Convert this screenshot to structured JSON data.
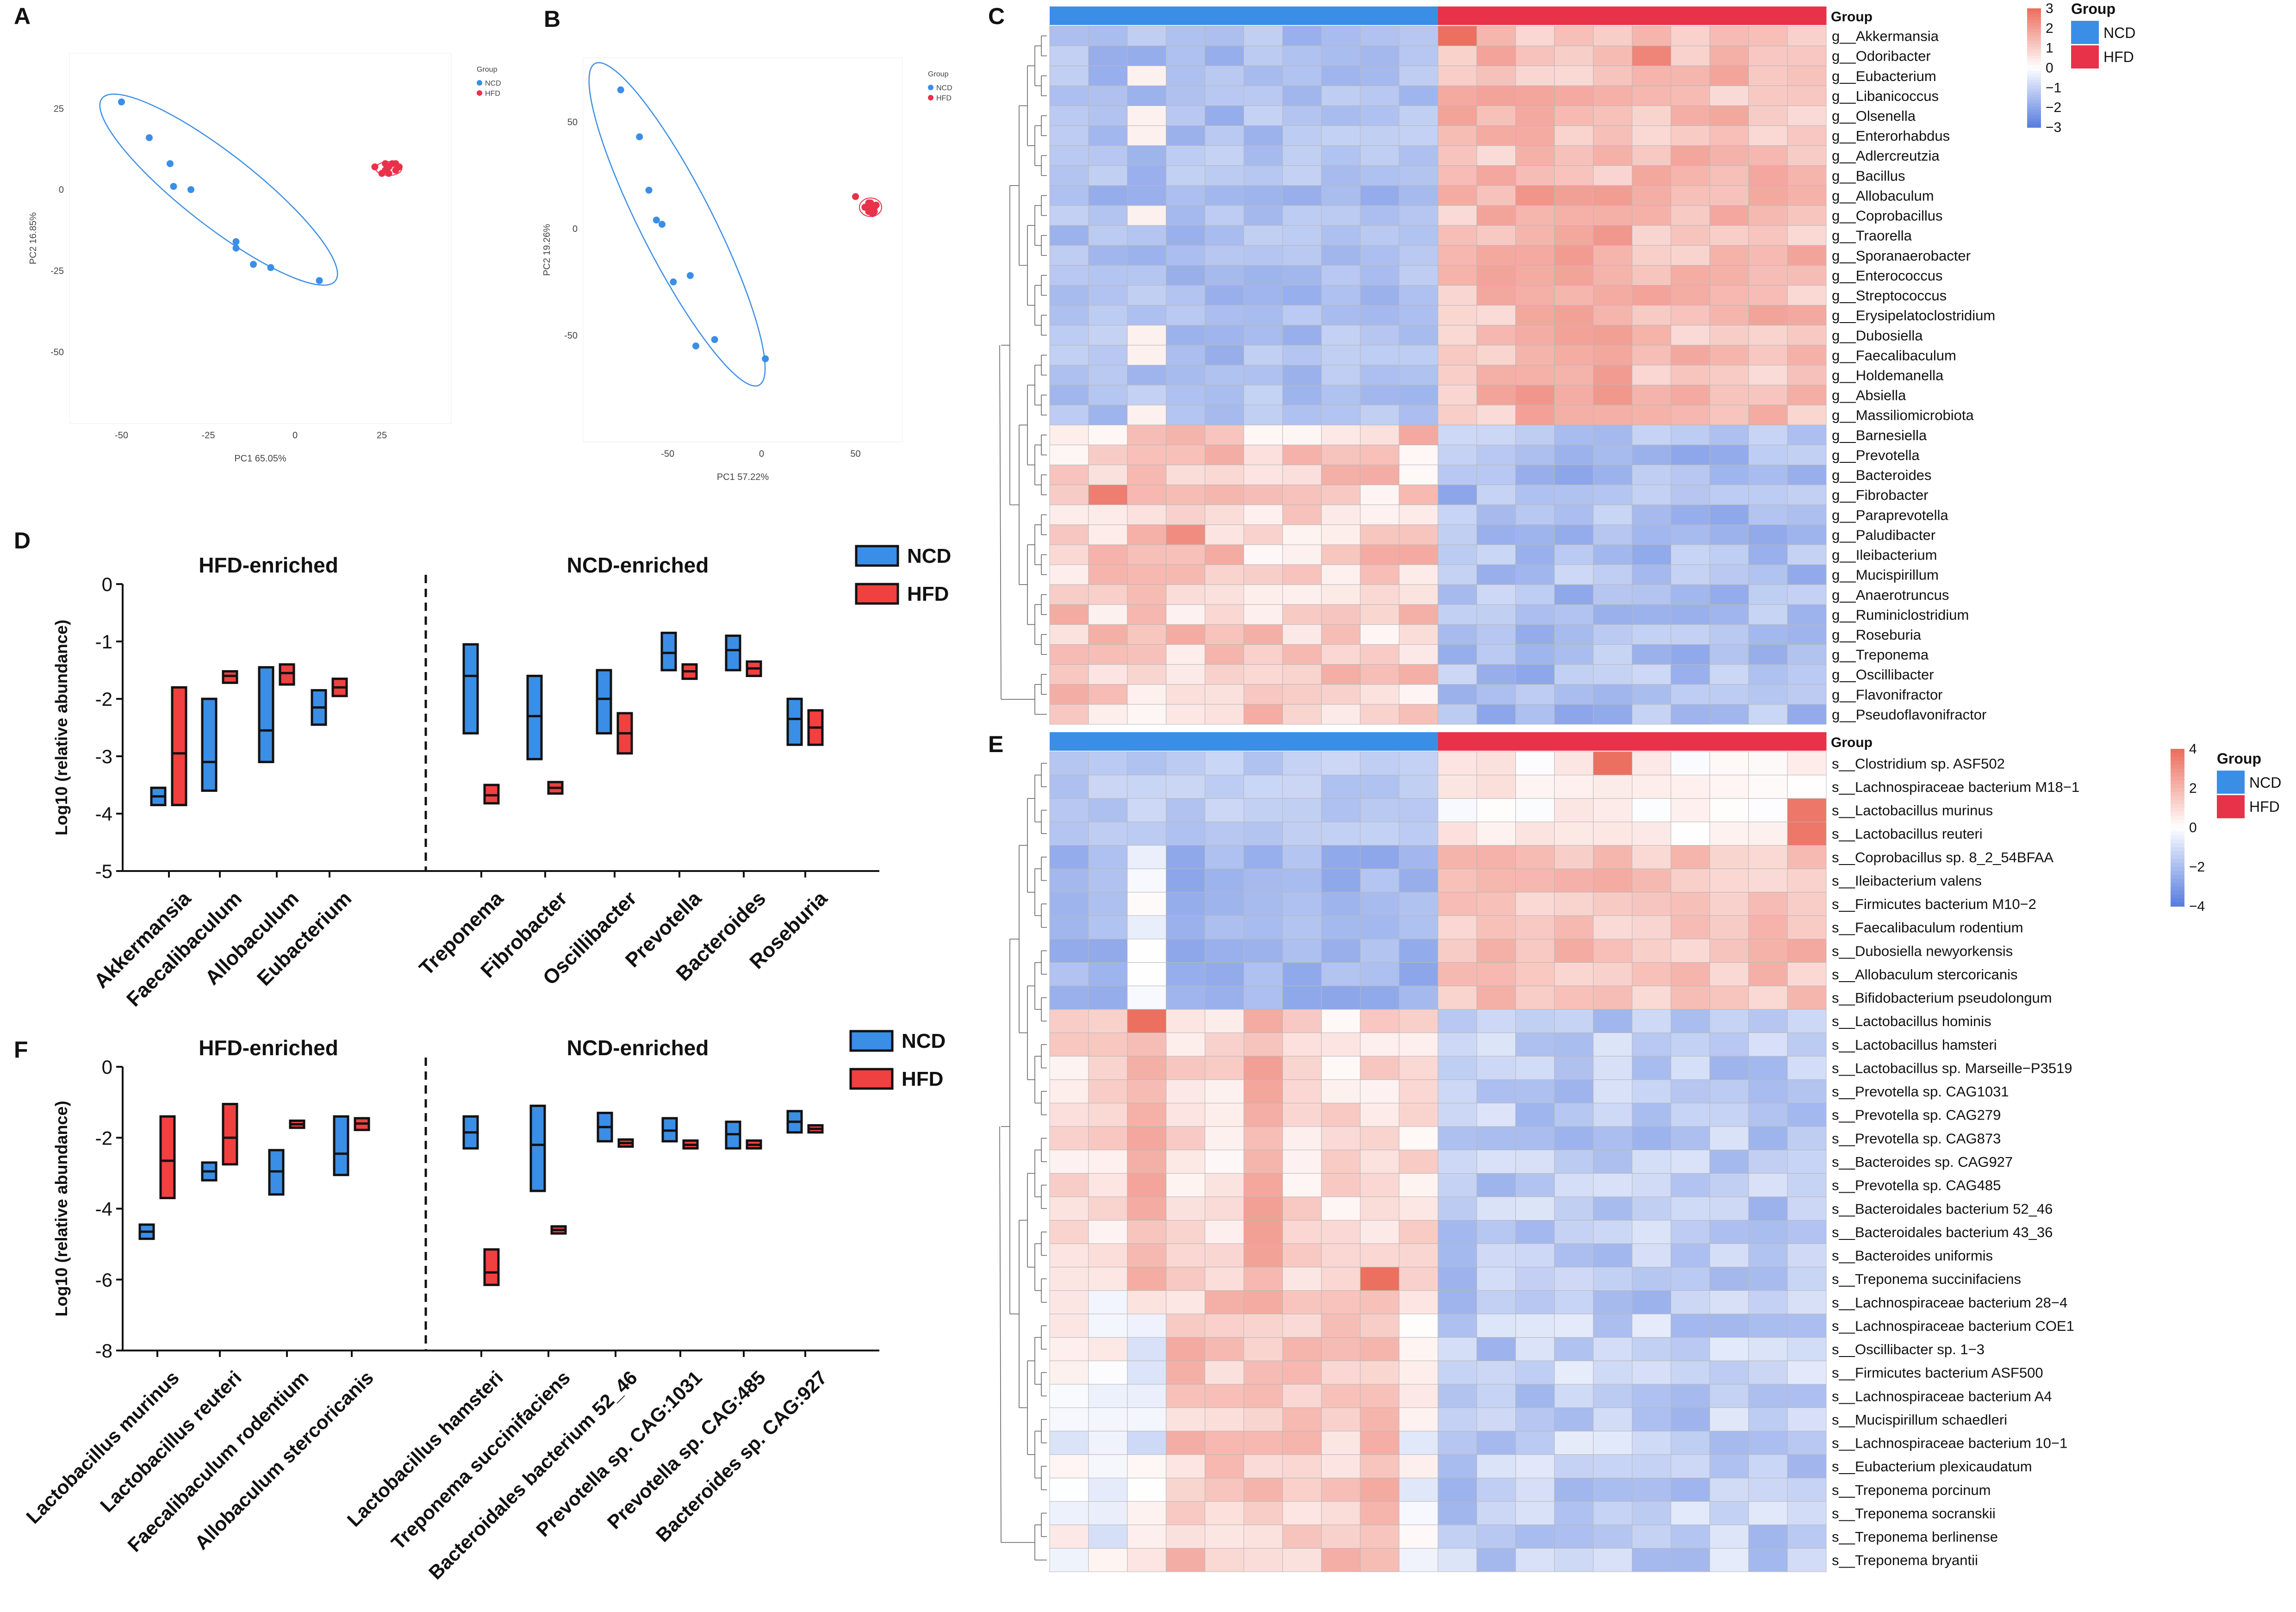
{
  "figure": {
    "panel_letters": [
      "A",
      "B",
      "C",
      "D",
      "E",
      "F"
    ]
  },
  "colors": {
    "ncd": "#3a8ee6",
    "hfd": "#e8324a",
    "ncd_bar": "#3a8ee6",
    "hfd_bar": "#f04040",
    "heat_low": "#5a7fe0",
    "heat_mid": "#ffffff",
    "heat_high": "#ec7060"
  },
  "legend": {
    "title": "Group",
    "ncd": "NCD",
    "hfd": "HFD"
  },
  "chart_data": [
    {
      "id": "A",
      "type": "scatter",
      "xlabel": "PC1 65.05%",
      "ylabel": "PC2 16.85%",
      "xlim": [
        -65,
        45
      ],
      "ylim": [
        -72,
        42
      ],
      "xticks": [
        -50,
        -25,
        0,
        25
      ],
      "yticks": [
        25,
        0,
        -25,
        -50
      ],
      "legend_title": "Group",
      "legend_entries": [
        "NCD",
        "HFD"
      ],
      "series": [
        {
          "name": "NCD",
          "points": [
            [
              -50,
              27
            ],
            [
              -42,
              16
            ],
            [
              -36,
              8
            ],
            [
              -35,
              1
            ],
            [
              -30,
              0
            ],
            [
              -17,
              -16
            ],
            [
              -17,
              -18
            ],
            [
              -12,
              -23
            ],
            [
              -7,
              -24
            ],
            [
              7,
              -28
            ]
          ]
        },
        {
          "name": "HFD",
          "points": [
            [
              23,
              7
            ],
            [
              25,
              5
            ],
            [
              26,
              6
            ],
            [
              27,
              7
            ],
            [
              28,
              8
            ],
            [
              29,
              6
            ],
            [
              30,
              7
            ],
            [
              27,
              5
            ],
            [
              29,
              8
            ],
            [
              26,
              8
            ]
          ]
        }
      ]
    },
    {
      "id": "B",
      "type": "scatter",
      "xlabel": "PC1 57.22%",
      "ylabel": "PC2 19.26%",
      "xlim": [
        -95,
        75
      ],
      "ylim": [
        -100,
        80
      ],
      "xticks": [
        -50,
        0,
        50
      ],
      "yticks": [
        50,
        0,
        -50
      ],
      "legend_title": "Group",
      "legend_entries": [
        "NCD",
        "HFD"
      ],
      "series": [
        {
          "name": "NCD",
          "points": [
            [
              -75,
              65
            ],
            [
              -65,
              43
            ],
            [
              -60,
              18
            ],
            [
              -56,
              4
            ],
            [
              -53,
              2
            ],
            [
              -47,
              -25
            ],
            [
              -38,
              -22
            ],
            [
              -35,
              -55
            ],
            [
              -25,
              -52
            ],
            [
              2,
              -61
            ]
          ]
        },
        {
          "name": "HFD",
          "points": [
            [
              50,
              15
            ],
            [
              55,
              10
            ],
            [
              57,
              8
            ],
            [
              58,
              12
            ],
            [
              60,
              10
            ],
            [
              59,
              7
            ],
            [
              61,
              11
            ],
            [
              57,
              12
            ],
            [
              60,
              8
            ],
            [
              58,
              9
            ]
          ]
        }
      ]
    },
    {
      "id": "C",
      "type": "heatmap",
      "column_groups": [
        "NCD",
        "NCD",
        "NCD",
        "NCD",
        "NCD",
        "NCD",
        "NCD",
        "NCD",
        "NCD",
        "NCD",
        "HFD",
        "HFD",
        "HFD",
        "HFD",
        "HFD",
        "HFD",
        "HFD",
        "HFD",
        "HFD",
        "HFD"
      ],
      "scale_ticks": [
        3,
        2,
        1,
        0,
        -1,
        -2,
        -3
      ],
      "scale_labels": [
        "3",
        "2",
        "1",
        "0",
        "−1",
        "−2",
        "−3"
      ],
      "rows": [
        "g__Akkermansia",
        "g__Odoribacter",
        "g__Eubacterium",
        "g__Libanicoccus",
        "g__Olsenella",
        "g__Enterorhabdus",
        "g__Adlercreutzia",
        "g__Bacillus",
        "g__Allobaculum",
        "g__Coprobacillus",
        "g__Traorella",
        "g__Sporanaerobacter",
        "g__Enterococcus",
        "g__Streptococcus",
        "g__Erysipelatoclostridium",
        "g__Dubosiella",
        "g__Faecalibaculum",
        "g__Holdemanella",
        "g__Absiella",
        "g__Massiliomicrobiota",
        "g__Barnesiella",
        "g__Prevotella",
        "g__Bacteroides",
        "g__Fibrobacter",
        "g__Paraprevotella",
        "g__Paludibacter",
        "g__Ileibacterium",
        "g__Mucispirillum",
        "g__Anaerotruncus",
        "g__Ruminiclostridium",
        "g__Roseburia",
        "g__Treponema",
        "g__Oscillibacter",
        "g__Flavonifractor",
        "g__Pseudoflavonifractor"
      ]
    },
    {
      "id": "E",
      "type": "heatmap",
      "column_groups": [
        "NCD",
        "NCD",
        "NCD",
        "NCD",
        "NCD",
        "NCD",
        "NCD",
        "NCD",
        "NCD",
        "NCD",
        "HFD",
        "HFD",
        "HFD",
        "HFD",
        "HFD",
        "HFD",
        "HFD",
        "HFD",
        "HFD",
        "HFD"
      ],
      "scale_ticks": [
        4,
        2,
        0,
        -2,
        -4
      ],
      "scale_labels": [
        "4",
        "2",
        "0",
        "−2",
        "−4"
      ],
      "rows": [
        "s__Clostridium sp. ASF502",
        "s__Lachnospiraceae bacterium M18−1",
        "s__Lactobacillus murinus",
        "s__Lactobacillus reuteri",
        "s__Coprobacillus sp. 8_2_54BFAA",
        "s__Ileibacterium valens",
        "s__Firmicutes bacterium M10−2",
        "s__Faecalibaculum rodentium",
        "s__Dubosiella newyorkensis",
        "s__Allobaculum stercoricanis",
        "s__Bifidobacterium pseudolongum",
        "s__Lactobacillus hominis",
        "s__Lactobacillus hamsteri",
        "s__Lactobacillus sp. Marseille−P3519",
        "s__Prevotella sp. CAG1031",
        "s__Prevotella sp. CAG279",
        "s__Prevotella sp. CAG873",
        "s__Bacteroides sp. CAG927",
        "s__Prevotella sp. CAG485",
        "s__Bacteroidales bacterium 52_46",
        "s__Bacteroidales bacterium 43_36",
        "s__Bacteroides uniformis",
        "s__Treponema succinifaciens",
        "s__Lachnospiraceae bacterium 28−4",
        "s__Lachnospiraceae bacterium COE1",
        "s__Oscillibacter sp. 1−3",
        "s__Firmicutes bacterium ASF500",
        "s__Lachnospiraceae bacterium A4",
        "s__Mucispirillum schaedleri",
        "s__Lachnospiraceae bacterium 10−1",
        "s__Eubacterium plexicaudatum",
        "s__Treponema porcinum",
        "s__Treponema socranskii",
        "s__Treponema berlinense",
        "s__Treponema bryantii"
      ]
    },
    {
      "id": "D",
      "type": "floating-bar",
      "ylabel": "Log10 (relative abundance)",
      "ylim": [
        -5,
        0
      ],
      "yticks": [
        0,
        -1,
        -2,
        -3,
        -4,
        -5
      ],
      "section_labels": [
        "HFD-enriched",
        "NCD-enriched"
      ],
      "split_after": 4,
      "legend_entries": [
        "NCD",
        "HFD"
      ],
      "categories": [
        "Akkermansia",
        "Faecalibaculum",
        "Allobaculum",
        "Eubacterium",
        "Treponema",
        "Fibrobacter",
        "Oscillibacter",
        "Prevotella",
        "Bacteroides",
        "Roseburia"
      ],
      "series": [
        {
          "name": "NCD",
          "min": [
            -3.85,
            -3.6,
            -3.1,
            -2.45,
            -2.6,
            -3.05,
            -2.6,
            -1.5,
            -1.5,
            -2.8
          ],
          "max": [
            -3.55,
            -2.0,
            -1.45,
            -1.85,
            -1.05,
            -1.6,
            -1.5,
            -0.85,
            -0.9,
            -2.0
          ],
          "mean": [
            -3.7,
            -3.1,
            -2.55,
            -2.15,
            -1.6,
            -2.3,
            -2.0,
            -1.2,
            -1.15,
            -2.35
          ]
        },
        {
          "name": "HFD",
          "min": [
            -3.85,
            -1.72,
            -1.75,
            -1.95,
            -3.82,
            -3.65,
            -2.95,
            -1.65,
            -1.6,
            -2.8
          ],
          "max": [
            -1.8,
            -1.52,
            -1.4,
            -1.65,
            -3.5,
            -3.45,
            -2.25,
            -1.4,
            -1.35,
            -2.2
          ],
          "mean": [
            -2.95,
            -1.6,
            -1.55,
            -1.8,
            -3.68,
            -3.55,
            -2.6,
            -1.52,
            -1.47,
            -2.5
          ]
        }
      ]
    },
    {
      "id": "F",
      "type": "floating-bar",
      "ylabel": "Log10 (relative abundance)",
      "ylim": [
        -8,
        0
      ],
      "yticks": [
        0,
        -2,
        -4,
        -6,
        -8
      ],
      "section_labels": [
        "HFD-enriched",
        "NCD-enriched"
      ],
      "split_after": 4,
      "legend_entries": [
        "NCD",
        "HFD"
      ],
      "categories": [
        "Lactobacillus murinus",
        "Lactobacillus reuteri",
        "Faecalibaculum rodentium",
        "Allobaculum stercoricanis",
        "Lactobacillus hamsteri",
        "Treponema succinifaciens",
        "Bacteroidales bacterium 52_46",
        "Prevotella sp. CAG:1031",
        "Prevotella sp. CAG:485",
        "Bacteroides sp. CAG:927"
      ],
      "series": [
        {
          "name": "NCD",
          "min": [
            -4.85,
            -3.2,
            -3.6,
            -3.05,
            -2.3,
            -3.5,
            -2.1,
            -2.1,
            -2.3,
            -1.85
          ],
          "max": [
            -4.45,
            -2.7,
            -2.35,
            -1.4,
            -1.4,
            -1.1,
            -1.3,
            -1.45,
            -1.55,
            -1.25
          ],
          "mean": [
            -4.65,
            -2.95,
            -2.95,
            -2.45,
            -1.85,
            -2.2,
            -1.7,
            -1.8,
            -1.9,
            -1.55
          ]
        },
        {
          "name": "HFD",
          "min": [
            -3.7,
            -2.75,
            -1.72,
            -1.78,
            -6.15,
            -4.7,
            -2.25,
            -2.3,
            -2.3,
            -1.85
          ],
          "max": [
            -1.4,
            -1.05,
            -1.52,
            -1.45,
            -5.15,
            -4.5,
            -2.05,
            -2.08,
            -2.08,
            -1.65
          ],
          "mean": [
            -2.65,
            -2.0,
            -1.62,
            -1.6,
            -5.8,
            -4.6,
            -2.15,
            -2.2,
            -2.2,
            -1.75
          ]
        }
      ]
    }
  ]
}
